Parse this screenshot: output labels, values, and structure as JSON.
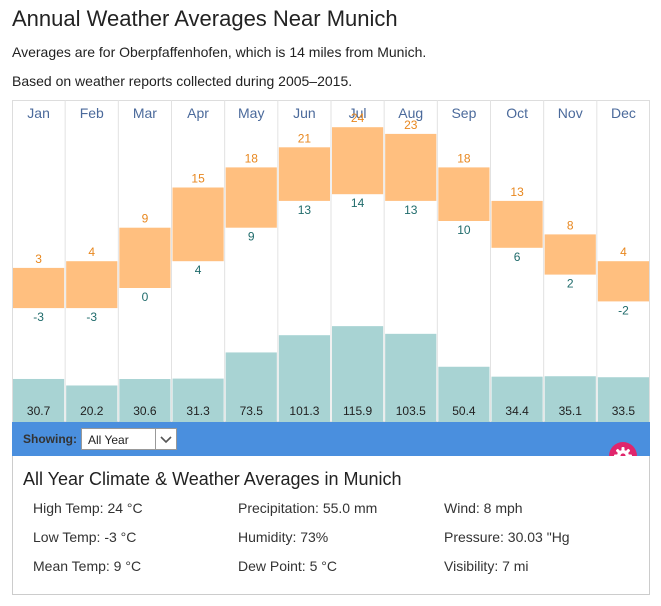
{
  "title": "Annual Weather Averages Near Munich",
  "subtitle_1": "Averages are for Oberpfaffenhofen, which is 14 miles from Munich.",
  "subtitle_2": "Based on weather reports collected during 2005–2015.",
  "chart_data": {
    "type": "bar",
    "categories": [
      "Jan",
      "Feb",
      "Mar",
      "Apr",
      "May",
      "Jun",
      "Jul",
      "Aug",
      "Sep",
      "Oct",
      "Nov",
      "Dec"
    ],
    "series": [
      {
        "values": [
          3,
          4,
          9,
          15,
          18,
          21,
          24,
          23,
          18,
          13,
          8,
          4
        ]
      },
      {
        "values": [
          -3,
          -3,
          0,
          4,
          9,
          13,
          14,
          13,
          10,
          6,
          2,
          -2
        ]
      },
      {
        "values": [
          30.7,
          20.2,
          30.6,
          31.3,
          73.5,
          101.3,
          115.9,
          103.5,
          50.4,
          34.4,
          35.1,
          33.5
        ]
      }
    ],
    "temperature_bar_color": "#ffbf7f",
    "high_label_color": "#e8871e",
    "low_label_color": "#1f6b6b",
    "precip_bar_color": "#a8d3d3",
    "grid": true
  },
  "toolbar": {
    "showing_label": "Showing:",
    "selected_option": "All Year"
  },
  "summary": {
    "title": "All Year Climate & Weather Averages in Munich",
    "high_temp": "High Temp: 24 °C",
    "low_temp": "Low Temp: -3 °C",
    "mean_temp": "Mean Temp: 9 °C",
    "precipitation": "Precipitation: 55.0 mm",
    "humidity": "Humidity: 73%",
    "dew_point": "Dew Point: 5 °C",
    "wind": "Wind: 8 mph",
    "pressure": "Pressure: 30.03 \"Hg",
    "visibility": "Visibility: 7 mi"
  },
  "icons": {
    "gear": "gear-icon",
    "caret": "chevron-down-icon"
  }
}
